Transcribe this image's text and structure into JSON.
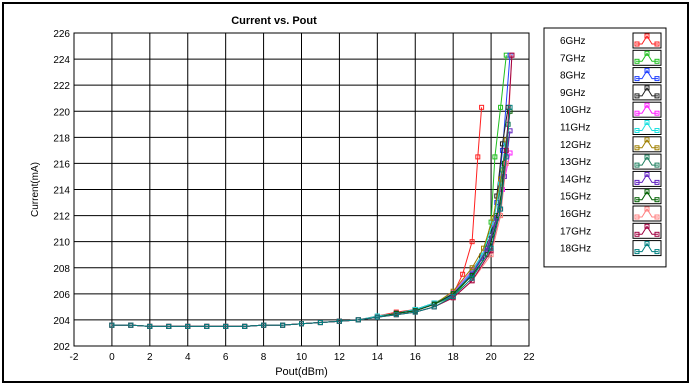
{
  "chart_data": {
    "type": "line",
    "title": "Current vs. Pout",
    "xlabel": "Pout(dBm)",
    "ylabel": "Current(mA)",
    "xlim": [
      -2,
      22
    ],
    "ylim": [
      202,
      226
    ],
    "xticks": [
      -2,
      0,
      2,
      4,
      6,
      8,
      10,
      12,
      14,
      16,
      18,
      20,
      22
    ],
    "yticks": [
      202,
      204,
      206,
      208,
      210,
      212,
      214,
      216,
      218,
      220,
      222,
      224,
      226
    ],
    "grid": true,
    "legend_position": "right",
    "x": [
      0,
      1,
      2,
      3,
      4,
      5,
      6,
      7,
      8,
      9,
      10,
      11,
      12,
      13,
      14,
      15,
      16,
      17,
      18,
      19,
      20,
      21
    ],
    "series": [
      {
        "name": "6GHz",
        "color": "#ff2020",
        "x": [
          0,
          1,
          2,
          3,
          4,
          5,
          6,
          7,
          8,
          9,
          10,
          11,
          12,
          13,
          14,
          15,
          16,
          17,
          18,
          18.5,
          19,
          19.3,
          19.5
        ],
        "values": [
          203.6,
          203.6,
          203.5,
          203.5,
          203.5,
          203.5,
          203.5,
          203.5,
          203.6,
          203.6,
          203.7,
          203.8,
          203.9,
          204.0,
          204.3,
          204.6,
          204.8,
          205.2,
          206.0,
          207.5,
          210.0,
          216.5,
          220.3
        ]
      },
      {
        "name": "7GHz",
        "color": "#20c020",
        "x": [
          0,
          1,
          2,
          3,
          4,
          5,
          6,
          7,
          8,
          9,
          10,
          11,
          12,
          13,
          14,
          15,
          16,
          17,
          18,
          19,
          19.5,
          20,
          20.2,
          20.5,
          20.8
        ],
        "values": [
          203.6,
          203.6,
          203.5,
          203.5,
          203.5,
          203.5,
          203.5,
          203.5,
          203.6,
          203.6,
          203.7,
          203.8,
          203.9,
          204.0,
          204.2,
          204.5,
          204.8,
          205.2,
          205.8,
          207.5,
          208.7,
          211.5,
          216.5,
          220.3,
          224.3
        ]
      },
      {
        "name": "8GHz",
        "color": "#2040ff",
        "x": [
          0,
          1,
          2,
          3,
          4,
          5,
          6,
          7,
          8,
          9,
          10,
          11,
          12,
          13,
          14,
          15,
          16,
          17,
          18,
          19,
          19.5,
          20,
          20.3,
          20.6,
          21
        ],
        "values": [
          203.6,
          203.6,
          203.5,
          203.5,
          203.5,
          203.5,
          203.5,
          203.5,
          203.6,
          203.6,
          203.7,
          203.8,
          203.9,
          204.0,
          204.2,
          204.5,
          204.8,
          205.2,
          205.9,
          207.6,
          208.8,
          210.5,
          213.0,
          217.0,
          224.3
        ]
      },
      {
        "name": "9GHz",
        "color": "#202020",
        "x": [
          0,
          1,
          2,
          3,
          4,
          5,
          6,
          7,
          8,
          9,
          10,
          11,
          12,
          13,
          14,
          15,
          16,
          17,
          18,
          19,
          19.5,
          20,
          20.3,
          20.6,
          20.9
        ],
        "values": [
          203.6,
          203.6,
          203.5,
          203.5,
          203.5,
          203.5,
          203.5,
          203.5,
          203.6,
          203.6,
          203.7,
          203.8,
          203.9,
          204.0,
          204.2,
          204.5,
          204.8,
          205.3,
          206.0,
          207.8,
          208.9,
          210.5,
          213.5,
          217.5,
          220.3
        ]
      },
      {
        "name": "10GHz",
        "color": "#ff20ff",
        "x": [
          0,
          1,
          2,
          3,
          4,
          5,
          6,
          7,
          8,
          9,
          10,
          11,
          12,
          13,
          14,
          15,
          16,
          17,
          18,
          19,
          19.7,
          20.2,
          20.6,
          21
        ],
        "values": [
          203.6,
          203.6,
          203.5,
          203.5,
          203.5,
          203.5,
          203.5,
          203.5,
          203.6,
          203.6,
          203.7,
          203.8,
          203.9,
          204.0,
          204.2,
          204.5,
          204.7,
          205.2,
          206.1,
          207.8,
          209.3,
          211.3,
          214.0,
          216.8
        ]
      },
      {
        "name": "11GHz",
        "color": "#20e0e0",
        "x": [
          0,
          1,
          2,
          3,
          4,
          5,
          6,
          7,
          8,
          9,
          10,
          11,
          12,
          13,
          14,
          15,
          16,
          17,
          18,
          19,
          19.6,
          20.1,
          20.5,
          20.8
        ],
        "values": [
          203.6,
          203.6,
          203.5,
          203.5,
          203.5,
          203.5,
          203.5,
          203.5,
          203.6,
          203.6,
          203.7,
          203.8,
          203.9,
          204.0,
          204.3,
          204.5,
          204.8,
          205.3,
          206.0,
          207.7,
          209.2,
          211.5,
          214.5,
          217.5
        ]
      },
      {
        "name": "12GHz",
        "color": "#a08000",
        "x": [
          0,
          1,
          2,
          3,
          4,
          5,
          6,
          7,
          8,
          9,
          10,
          11,
          12,
          13,
          14,
          15,
          16,
          17,
          18,
          19,
          19.6,
          20.1,
          20.5,
          20.8
        ],
        "values": [
          203.6,
          203.6,
          203.5,
          203.5,
          203.5,
          203.5,
          203.5,
          203.5,
          203.6,
          203.6,
          203.7,
          203.8,
          203.9,
          204.0,
          204.2,
          204.5,
          204.7,
          205.2,
          206.2,
          208.0,
          209.5,
          211.8,
          214.8,
          217.8
        ]
      },
      {
        "name": "13GHz",
        "color": "#208060",
        "x": [
          0,
          1,
          2,
          3,
          4,
          5,
          6,
          7,
          8,
          9,
          10,
          11,
          12,
          13,
          14,
          15,
          16,
          17,
          18,
          19,
          19.8,
          20.3,
          20.6,
          20.9
        ],
        "values": [
          203.6,
          203.6,
          203.5,
          203.5,
          203.5,
          203.5,
          203.5,
          203.5,
          203.6,
          203.6,
          203.7,
          203.8,
          203.9,
          204.0,
          204.2,
          204.5,
          204.7,
          205.2,
          206.0,
          207.5,
          209.5,
          212.0,
          215.5,
          219.0
        ]
      },
      {
        "name": "14GHz",
        "color": "#6020c0",
        "x": [
          0,
          1,
          2,
          3,
          4,
          5,
          6,
          7,
          8,
          9,
          10,
          11,
          12,
          13,
          14,
          15,
          16,
          17,
          18,
          19,
          19.8,
          20.3,
          20.7,
          21
        ],
        "values": [
          203.6,
          203.6,
          203.5,
          203.5,
          203.5,
          203.5,
          203.5,
          203.5,
          203.6,
          203.6,
          203.7,
          203.8,
          203.9,
          204.0,
          204.2,
          204.5,
          204.7,
          205.2,
          206.0,
          207.5,
          209.3,
          211.8,
          215.0,
          218.5
        ]
      },
      {
        "name": "15GHz",
        "color": "#006000",
        "x": [
          0,
          1,
          2,
          3,
          4,
          5,
          6,
          7,
          8,
          9,
          10,
          11,
          12,
          13,
          14,
          15,
          16,
          17,
          18,
          19,
          19.8,
          20.4,
          20.7,
          21
        ],
        "values": [
          203.6,
          203.6,
          203.5,
          203.5,
          203.5,
          203.5,
          203.5,
          203.5,
          203.6,
          203.6,
          203.7,
          203.8,
          203.9,
          204.0,
          204.2,
          204.5,
          204.7,
          205.2,
          206.0,
          207.4,
          209.0,
          212.0,
          216.0,
          220.0
        ]
      },
      {
        "name": "16GHz",
        "color": "#ff8080",
        "x": [
          0,
          1,
          2,
          3,
          4,
          5,
          6,
          7,
          8,
          9,
          10,
          11,
          12,
          13,
          14,
          15,
          16,
          17,
          18,
          19,
          20,
          20.5,
          20.8,
          21.1
        ],
        "values": [
          203.6,
          203.6,
          203.5,
          203.5,
          203.5,
          203.5,
          203.5,
          203.5,
          203.6,
          203.6,
          203.7,
          203.8,
          203.9,
          204.0,
          204.2,
          204.4,
          204.6,
          205.0,
          205.7,
          207.0,
          209.0,
          212.0,
          216.0,
          224.3
        ]
      },
      {
        "name": "17GHz",
        "color": "#a00040",
        "x": [
          0,
          1,
          2,
          3,
          4,
          5,
          6,
          7,
          8,
          9,
          10,
          11,
          12,
          13,
          14,
          15,
          16,
          17,
          18,
          19,
          20,
          20.5,
          20.8,
          21.1
        ],
        "values": [
          203.6,
          203.6,
          203.5,
          203.5,
          203.5,
          203.5,
          203.5,
          203.5,
          203.6,
          203.6,
          203.7,
          203.8,
          203.9,
          204.0,
          204.2,
          204.4,
          204.6,
          205.0,
          205.7,
          207.0,
          209.3,
          212.5,
          217.0,
          224.3
        ]
      },
      {
        "name": "18GHz",
        "color": "#008080",
        "x": [
          0,
          1,
          2,
          3,
          4,
          5,
          6,
          7,
          8,
          9,
          10,
          11,
          12,
          13,
          14,
          15,
          16,
          17,
          18,
          19,
          20,
          20.5,
          20.8,
          21
        ],
        "values": [
          203.6,
          203.6,
          203.5,
          203.5,
          203.5,
          203.5,
          203.5,
          203.5,
          203.6,
          203.6,
          203.7,
          203.8,
          203.9,
          204.0,
          204.2,
          204.4,
          204.6,
          205.0,
          205.8,
          207.2,
          209.5,
          212.5,
          216.5,
          220.3
        ]
      }
    ]
  }
}
